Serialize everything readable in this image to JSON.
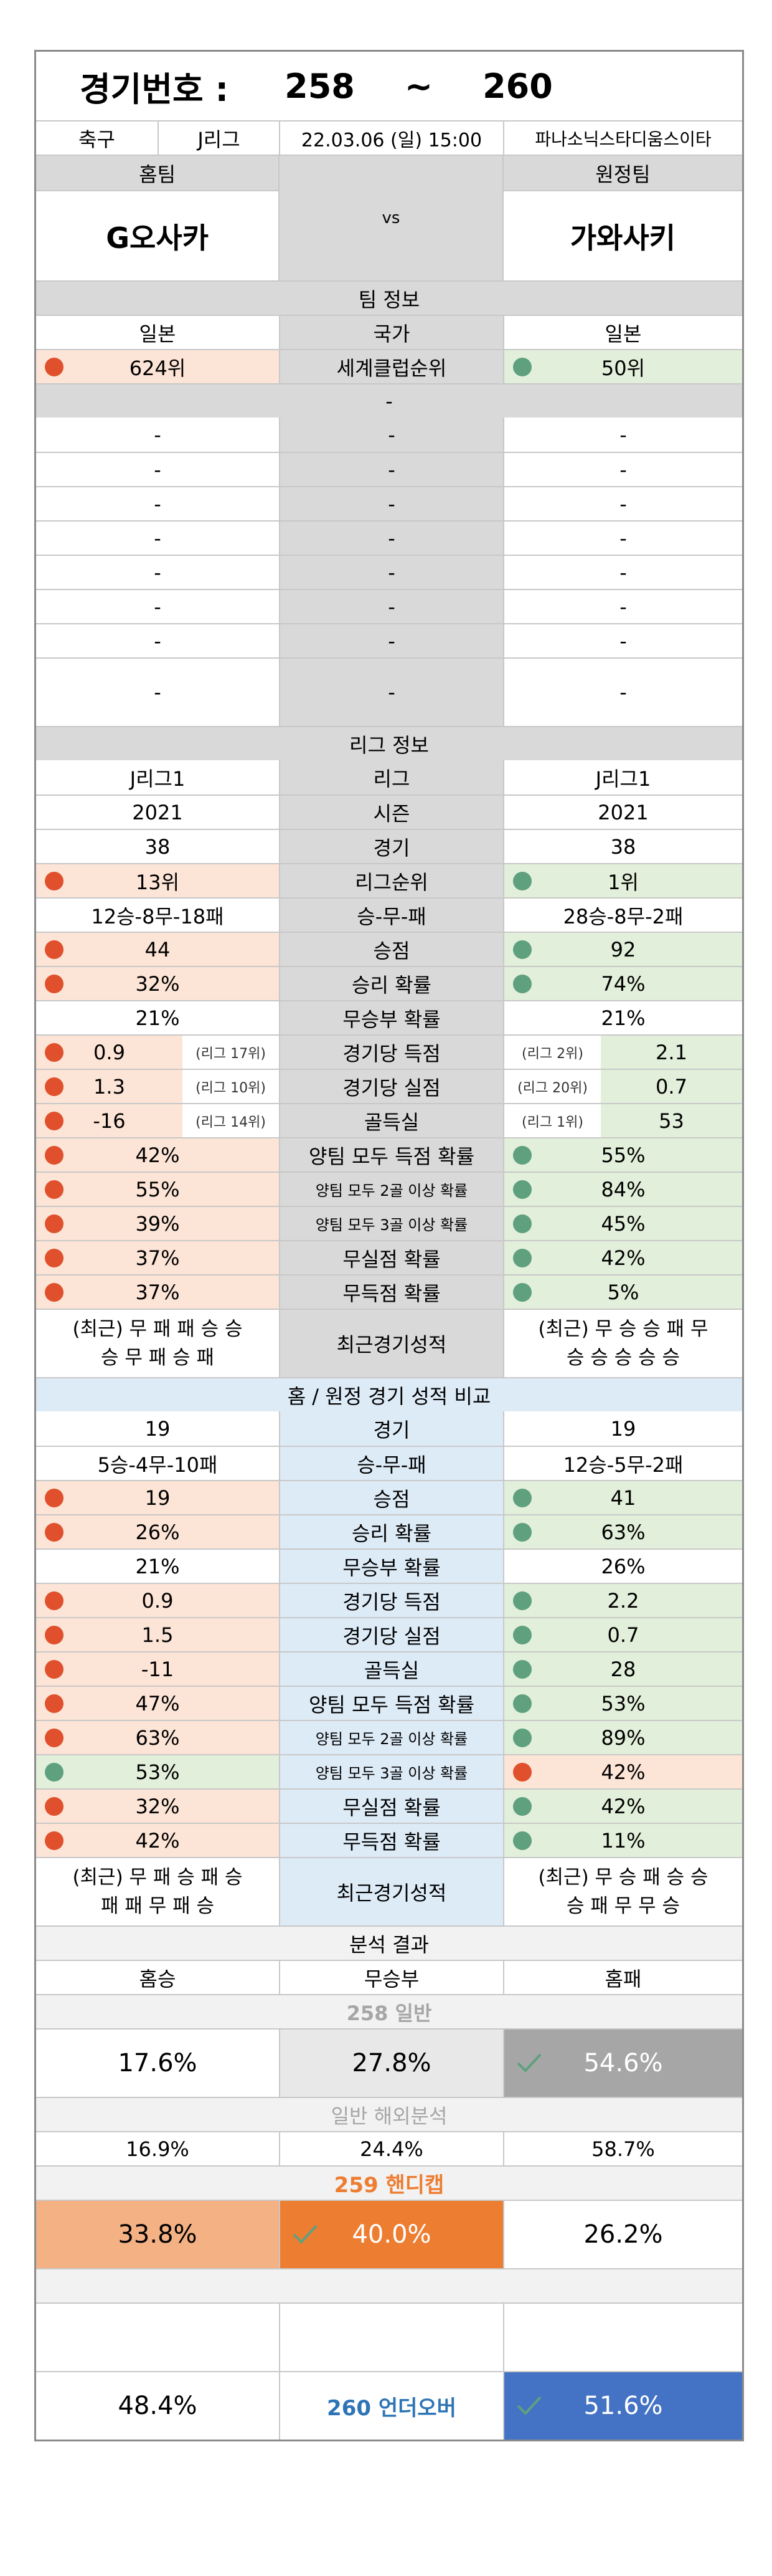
{
  "header": {
    "label": "경기번호 :",
    "num_start": "258",
    "tilde": "~",
    "num_end": "260"
  },
  "match": {
    "sport": "축구",
    "league": "J리그",
    "datetime": "22.03.06 (일) 15:00",
    "venue": "파나소닉스타디움스이타"
  },
  "teams": {
    "home_label": "홈팀",
    "away_label": "원정팀",
    "home": "G오사카",
    "vs": "vs",
    "away": "가와사키"
  },
  "team_info": {
    "title": "팀 정보",
    "country": {
      "home": "일본",
      "label": "국가",
      "away": "일본"
    },
    "club_rank": {
      "home": "624위",
      "label": "세계클럽순위",
      "away": "50위"
    },
    "dash": "-"
  },
  "league_info": {
    "title": "리그 정보",
    "league": {
      "home": "J리그1",
      "label": "리그",
      "away": "J리그1"
    },
    "season": {
      "home": "2021",
      "label": "시즌",
      "away": "2021"
    },
    "games": {
      "home": "38",
      "label": "경기",
      "away": "38"
    },
    "rank": {
      "home": "13위",
      "label": "리그순위",
      "away": "1위"
    },
    "wdl": {
      "home": "12승-8무-18패",
      "label": "승-무-패",
      "away": "28승-8무-2패"
    },
    "points": {
      "home": "44",
      "label": "승점",
      "away": "92"
    },
    "win_prob": {
      "home": "32%",
      "label": "승리 확률",
      "away": "74%"
    },
    "draw_prob": {
      "home": "21%",
      "label": "무승부 확률",
      "away": "21%"
    },
    "goals_for": {
      "home": "0.9",
      "home_rank": "(리그 17위)",
      "label": "경기당 득점",
      "away_rank": "(리그 2위)",
      "away": "2.1"
    },
    "goals_against": {
      "home": "1.3",
      "home_rank": "(리그 10위)",
      "label": "경기당 실점",
      "away_rank": "(리그 20위)",
      "away": "0.7"
    },
    "goal_diff": {
      "home": "-16",
      "home_rank": "(리그 14위)",
      "label": "골득실",
      "away_rank": "(리그 1위)",
      "away": "53"
    },
    "btts": {
      "home": "42%",
      "label": "양팀 모두 득점 확률",
      "away": "55%"
    },
    "btts2": {
      "home": "55%",
      "label": "양팀 모두 2골 이상 확률",
      "away": "84%"
    },
    "btts3": {
      "home": "39%",
      "label": "양팀 모두 3골 이상 확률",
      "away": "45%"
    },
    "clean_sheet": {
      "home": "37%",
      "label": "무실점 확률",
      "away": "42%"
    },
    "no_score": {
      "home": "37%",
      "label": "무득점 확률",
      "away": "5%"
    },
    "recent": {
      "home_l1": "(최근) 무 패 패 승 승",
      "home_l2": "승 무 패 승 패",
      "label": "최근경기성적",
      "away_l1": "(최근) 무 승 승 패 무",
      "away_l2": "승 승 승 승 승"
    }
  },
  "homeaway": {
    "title": "홈 / 원정 경기 성적 비교",
    "games": {
      "home": "19",
      "label": "경기",
      "away": "19"
    },
    "wdl": {
      "home": "5승-4무-10패",
      "label": "승-무-패",
      "away": "12승-5무-2패"
    },
    "points": {
      "home": "19",
      "label": "승점",
      "away": "41"
    },
    "win_prob": {
      "home": "26%",
      "label": "승리 확률",
      "away": "63%"
    },
    "draw_prob": {
      "home": "21%",
      "label": "무승부 확률",
      "away": "26%"
    },
    "goals_for": {
      "home": "0.9",
      "label": "경기당 득점",
      "away": "2.2"
    },
    "goals_against": {
      "home": "1.5",
      "label": "경기당 실점",
      "away": "0.7"
    },
    "goal_diff": {
      "home": "-11",
      "label": "골득실",
      "away": "28"
    },
    "btts": {
      "home": "47%",
      "label": "양팀 모두 득점 확률",
      "away": "53%"
    },
    "btts2": {
      "home": "63%",
      "label": "양팀 모두 2골 이상 확률",
      "away": "89%"
    },
    "btts3": {
      "home": "53%",
      "label": "양팀 모두 3골 이상 확률",
      "away": "42%"
    },
    "clean_sheet": {
      "home": "32%",
      "label": "무실점 확률",
      "away": "42%"
    },
    "no_score": {
      "home": "42%",
      "label": "무득점 확률",
      "away": "11%"
    },
    "recent": {
      "home_l1": "(최근) 무 패 승 패 승",
      "home_l2": "패 패 무 패 승",
      "label": "최근경기성적",
      "away_l1": "(최근) 무 승 패 승 승",
      "away_l2": "승 패 무 무 승"
    }
  },
  "analysis": {
    "title": "분석 결과",
    "cols": {
      "home": "홈승",
      "draw": "무승부",
      "away": "홈패"
    },
    "general": {
      "title": "258 일반",
      "home": "17.6%",
      "draw": "27.8%",
      "away": "54.6%"
    },
    "overseas": {
      "title": "일반 해외분석",
      "home": "16.9%",
      "draw": "24.4%",
      "away": "58.7%"
    },
    "handicap": {
      "title": "259 핸디캡",
      "home": "33.8%",
      "draw": "40.0%",
      "away": "26.2%"
    },
    "underover": {
      "title": "260 언더오버",
      "under": "48.4%",
      "over": "51.6%"
    }
  },
  "colors": {
    "salmon": "#fce4d6",
    "green": "#e2efda",
    "blue": "#ddebf7",
    "orange": "#ed7d31",
    "light_orange": "#f4b183",
    "dark_gray": "#a6a6a6",
    "blue_accent": "#4472c4",
    "red_dot": "#e0502c",
    "green_dot": "#5fa07f"
  }
}
